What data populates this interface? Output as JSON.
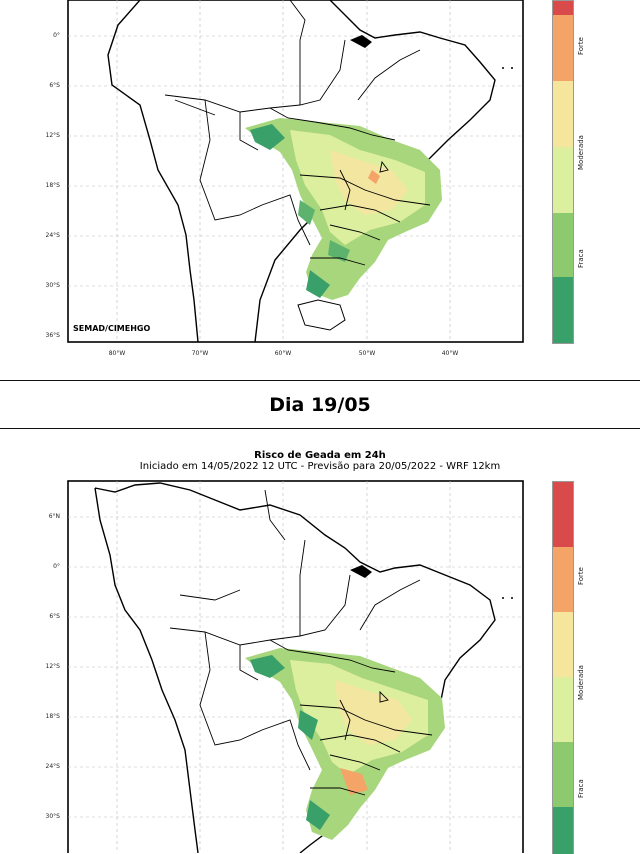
{
  "top_map": {
    "lat_labels": [
      "0°",
      "6°S",
      "12°S",
      "18°S",
      "24°S",
      "30°S",
      "36°S"
    ],
    "lon_labels": [
      "80°W",
      "70°W",
      "60°W",
      "50°W",
      "40°W"
    ],
    "credit": "SEMAD/CIMEHGO",
    "colorbar_labels": [
      "Forte",
      "Moderada",
      "Fraca"
    ]
  },
  "day_heading": "Dia 19/05",
  "bottom_map": {
    "title": "Risco de Geada em 24h",
    "subtitle": "Iniciado em 14/05/2022 12 UTC - Previsão para 20/05/2022 - WRF 12km",
    "lat_labels": [
      "6°N",
      "0°",
      "6°S",
      "12°S",
      "18°S",
      "24°S",
      "30°S"
    ],
    "colorbar_labels": [
      "Forte",
      "Moderada",
      "Fraca"
    ]
  },
  "colors": {
    "risk_levels": [
      "#3aa06a",
      "#8cc96f",
      "#dcef9e",
      "#f6e59d",
      "#f4a467",
      "#d94b4b"
    ],
    "border": "#000000",
    "grid": "#bbbbbb"
  }
}
